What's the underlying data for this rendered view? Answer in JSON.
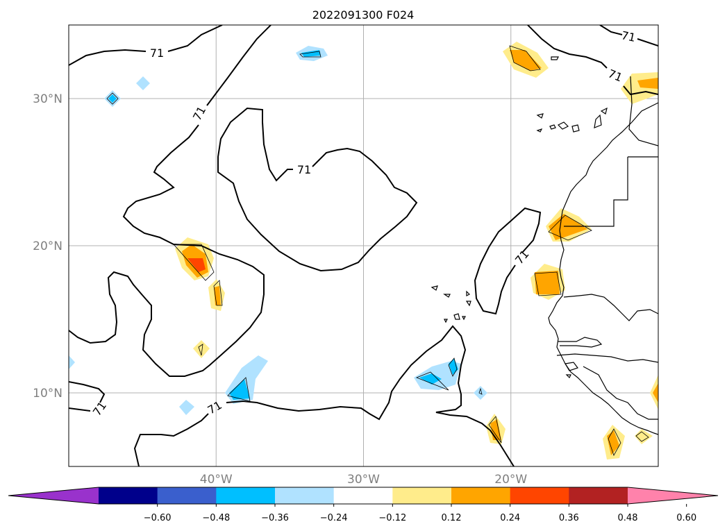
{
  "title": "2022091300 F024",
  "map": {
    "lon_range": [
      -50,
      -10
    ],
    "lat_range": [
      5,
      35
    ],
    "lon_ticks": [
      {
        "value": -40,
        "label": "40°W"
      },
      {
        "value": -30,
        "label": "30°W"
      },
      {
        "value": -20,
        "label": "20°W"
      }
    ],
    "lat_ticks": [
      {
        "value": 30,
        "label": "30°N"
      },
      {
        "value": 20,
        "label": "20°N"
      },
      {
        "value": 10,
        "label": "10°N"
      }
    ],
    "gridlines": true,
    "contour_level_label": "71"
  },
  "colorbar": {
    "orientation": "horizontal",
    "extend": "both",
    "colors": [
      "#9932cc",
      "#00008b",
      "#3a5fcd",
      "#00bfff",
      "#b0e2ff",
      "#ffffff",
      "#ffec8b",
      "#ffa500",
      "#ff4500",
      "#b22222",
      "#ff82ab"
    ],
    "labels": [
      "-0.60",
      "-0.48",
      "-0.36",
      "-0.24",
      "-0.12",
      "0.12",
      "0.24",
      "0.36",
      "0.48",
      "0.60"
    ]
  }
}
